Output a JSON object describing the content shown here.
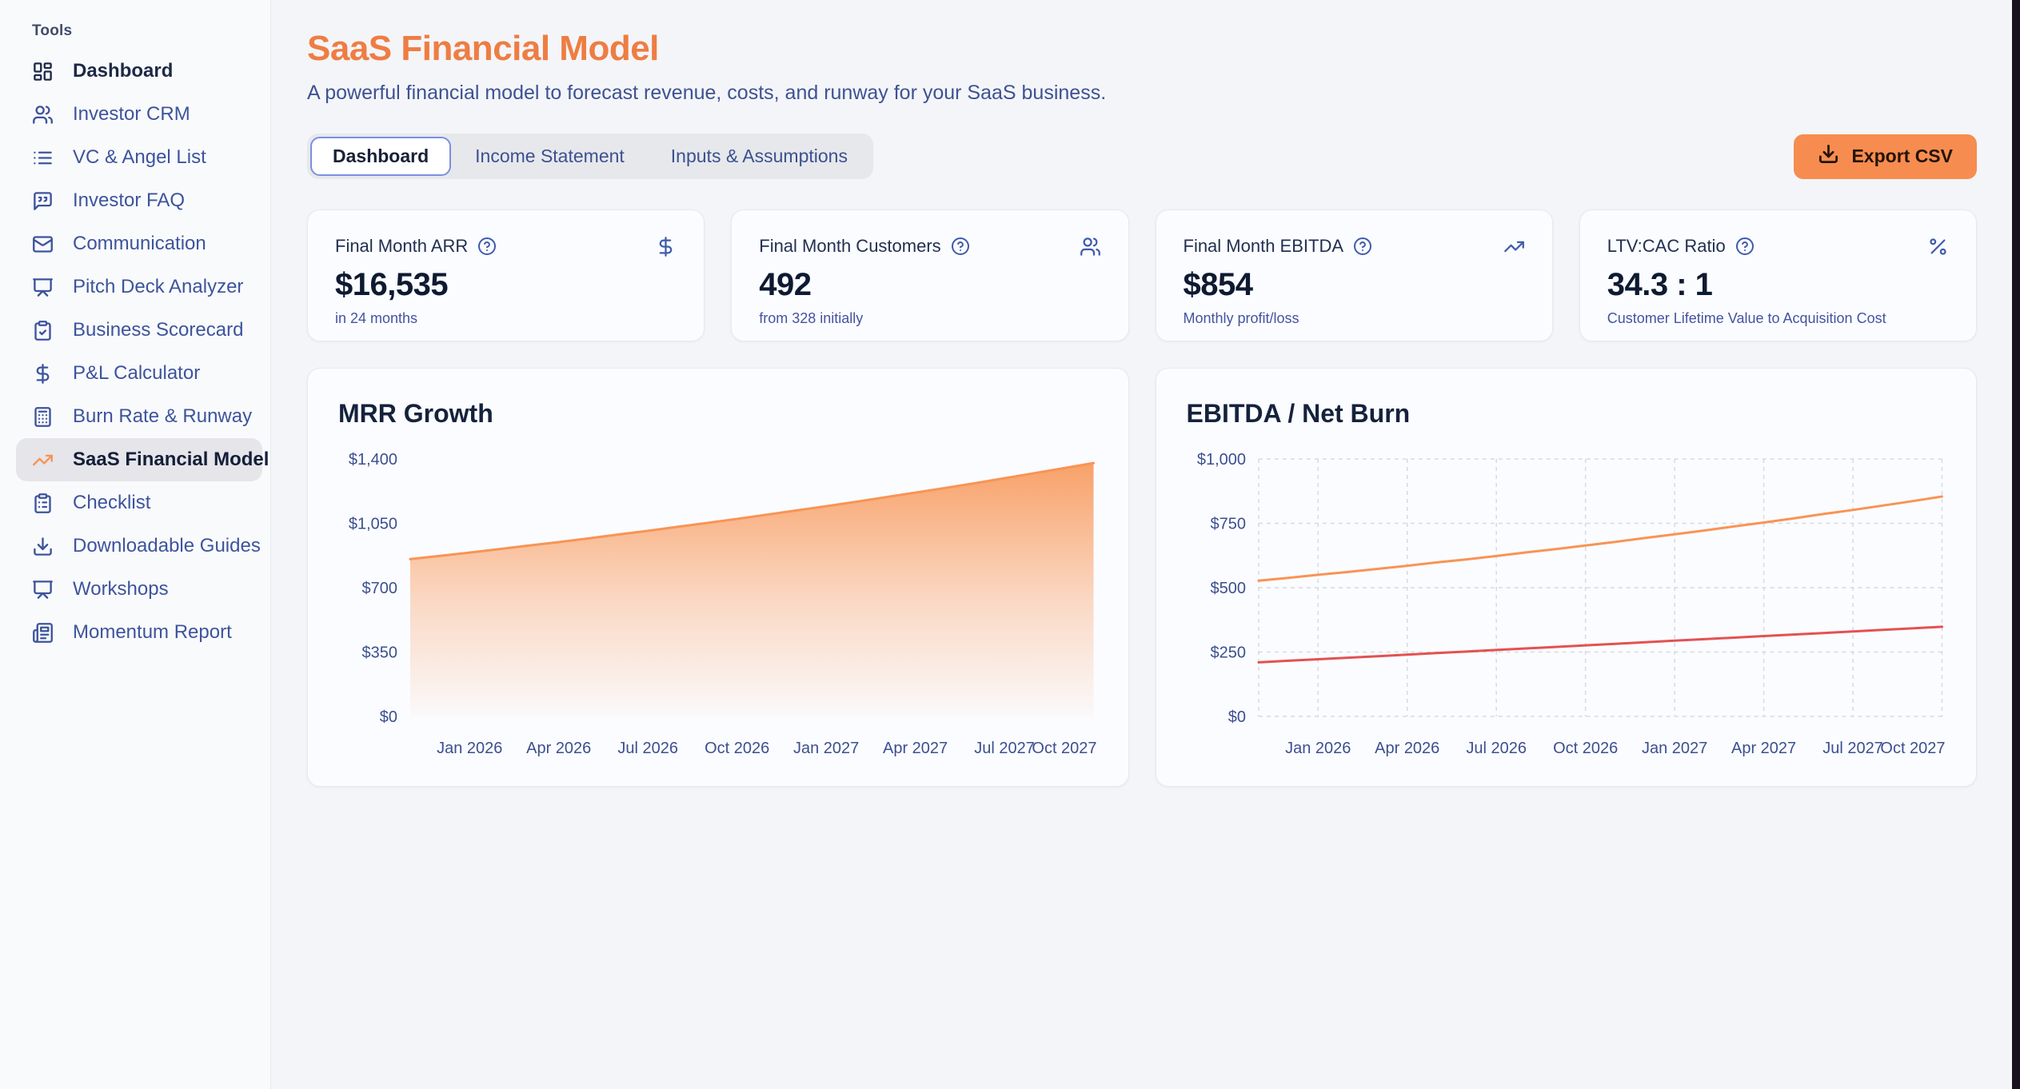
{
  "sidebar": {
    "section_label": "Tools",
    "items": [
      {
        "label": "Dashboard",
        "icon": "layout-dashboard",
        "style": "primary"
      },
      {
        "label": "Investor CRM",
        "icon": "users"
      },
      {
        "label": "VC & Angel List",
        "icon": "list"
      },
      {
        "label": "Investor FAQ",
        "icon": "message-square-quote"
      },
      {
        "label": "Communication",
        "icon": "mail"
      },
      {
        "label": "Pitch Deck Analyzer",
        "icon": "presentation"
      },
      {
        "label": "Business Scorecard",
        "icon": "clipboard-check"
      },
      {
        "label": "P&L Calculator",
        "icon": "dollar-sign"
      },
      {
        "label": "Burn Rate & Runway",
        "icon": "calculator"
      },
      {
        "label": "SaaS Financial Model",
        "icon": "trending-up",
        "active": true
      },
      {
        "label": "Checklist",
        "icon": "clipboard-list"
      },
      {
        "label": "Downloadable Guides",
        "icon": "download"
      },
      {
        "label": "Workshops",
        "icon": "presentation"
      },
      {
        "label": "Momentum Report",
        "icon": "newspaper"
      }
    ]
  },
  "header": {
    "title": "SaaS Financial Model",
    "subtitle": "A powerful financial model to forecast revenue, costs, and runway for your SaaS business."
  },
  "tabs": [
    {
      "label": "Dashboard",
      "active": true
    },
    {
      "label": "Income Statement",
      "active": false
    },
    {
      "label": "Inputs & Assumptions",
      "active": false
    }
  ],
  "export_button": {
    "label": "Export CSV",
    "icon": "download"
  },
  "stats": [
    {
      "label": "Final Month ARR",
      "value": "$16,535",
      "sub": "in 24 months",
      "icon": "dollar-sign"
    },
    {
      "label": "Final Month Customers",
      "value": "492",
      "sub": "from 328 initially",
      "icon": "users"
    },
    {
      "label": "Final Month EBITDA",
      "value": "$854",
      "sub": "Monthly profit/loss",
      "icon": "trending-up"
    },
    {
      "label": "LTV:CAC Ratio",
      "value": "34.3 : 1",
      "sub": "Customer Lifetime Value to Acquisition Cost",
      "icon": "percent"
    }
  ],
  "colors": {
    "accent_orange": "#ee7d43",
    "button_orange": "#f78c50",
    "line_orange": "#f89455",
    "line_red": "#e25252",
    "icon_blue": "#3f5bad",
    "axis_label": "#3c4f8f",
    "grid": "#d8dade",
    "edge_strip": "#18121e"
  },
  "chart_data": [
    {
      "id": "mrr-growth",
      "type": "area",
      "title": "MRR Growth",
      "xlabel": "",
      "ylabel": "",
      "x": [
        "Nov 2025",
        "Dec 2025",
        "Jan 2026",
        "Feb 2026",
        "Mar 2026",
        "Apr 2026",
        "May 2026",
        "Jun 2026",
        "Jul 2026",
        "Aug 2026",
        "Sep 2026",
        "Oct 2026",
        "Nov 2026",
        "Dec 2026",
        "Jan 2027",
        "Feb 2027",
        "Mar 2027",
        "Apr 2027",
        "May 2027",
        "Jun 2027",
        "Jul 2027",
        "Aug 2027",
        "Sep 2027",
        "Oct 2027"
      ],
      "x_tick_labels": [
        "Jan 2026",
        "Apr 2026",
        "Jul 2026",
        "Oct 2026",
        "Jan 2027",
        "Apr 2027",
        "Jul 2027",
        "Oct 2027"
      ],
      "x_tick_indices": [
        2,
        5,
        8,
        11,
        14,
        17,
        20,
        23
      ],
      "y_ticks": [
        0,
        350,
        700,
        1050,
        1400
      ],
      "y_tick_prefix": "$",
      "ylim": [
        0,
        1400
      ],
      "grid": false,
      "legend_position": "none",
      "series": [
        {
          "name": "MRR",
          "color": "#f89455",
          "fill": "gradient-orange",
          "values": [
            855,
            873,
            891,
            910,
            929,
            948,
            968,
            989,
            1009,
            1031,
            1052,
            1074,
            1097,
            1120,
            1143,
            1167,
            1192,
            1217,
            1242,
            1268,
            1295,
            1322,
            1350,
            1378
          ]
        }
      ]
    },
    {
      "id": "ebitda-net-burn",
      "type": "line",
      "title": "EBITDA / Net Burn",
      "xlabel": "",
      "ylabel": "",
      "x": [
        "Nov 2025",
        "Dec 2025",
        "Jan 2026",
        "Feb 2026",
        "Mar 2026",
        "Apr 2026",
        "May 2026",
        "Jun 2026",
        "Jul 2026",
        "Aug 2026",
        "Sep 2026",
        "Oct 2026",
        "Nov 2026",
        "Dec 2026",
        "Jan 2027",
        "Feb 2027",
        "Mar 2027",
        "Apr 2027",
        "May 2027",
        "Jun 2027",
        "Jul 2027",
        "Aug 2027",
        "Sep 2027",
        "Oct 2027"
      ],
      "x_tick_labels": [
        "Jan 2026",
        "Apr 2026",
        "Jul 2026",
        "Oct 2026",
        "Jan 2027",
        "Apr 2027",
        "Jul 2027",
        "Oct 2027"
      ],
      "x_tick_indices": [
        2,
        5,
        8,
        11,
        14,
        17,
        20,
        23
      ],
      "y_ticks": [
        0,
        250,
        500,
        750,
        1000
      ],
      "y_tick_prefix": "$",
      "ylim": [
        0,
        1000
      ],
      "grid": true,
      "legend_position": "none",
      "series": [
        {
          "name": "EBITDA",
          "color": "#f89455",
          "values": [
            527,
            538,
            550,
            561,
            573,
            585,
            598,
            610,
            623,
            637,
            650,
            664,
            678,
            693,
            707,
            722,
            738,
            753,
            769,
            786,
            802,
            819,
            836,
            854
          ]
        },
        {
          "name": "Net Burn",
          "color": "#e25252",
          "values": [
            210,
            216,
            222,
            228,
            234,
            240,
            246,
            252,
            258,
            264,
            270,
            276,
            282,
            288,
            294,
            300,
            306,
            312,
            318,
            324,
            330,
            336,
            342,
            348
          ]
        }
      ]
    }
  ]
}
